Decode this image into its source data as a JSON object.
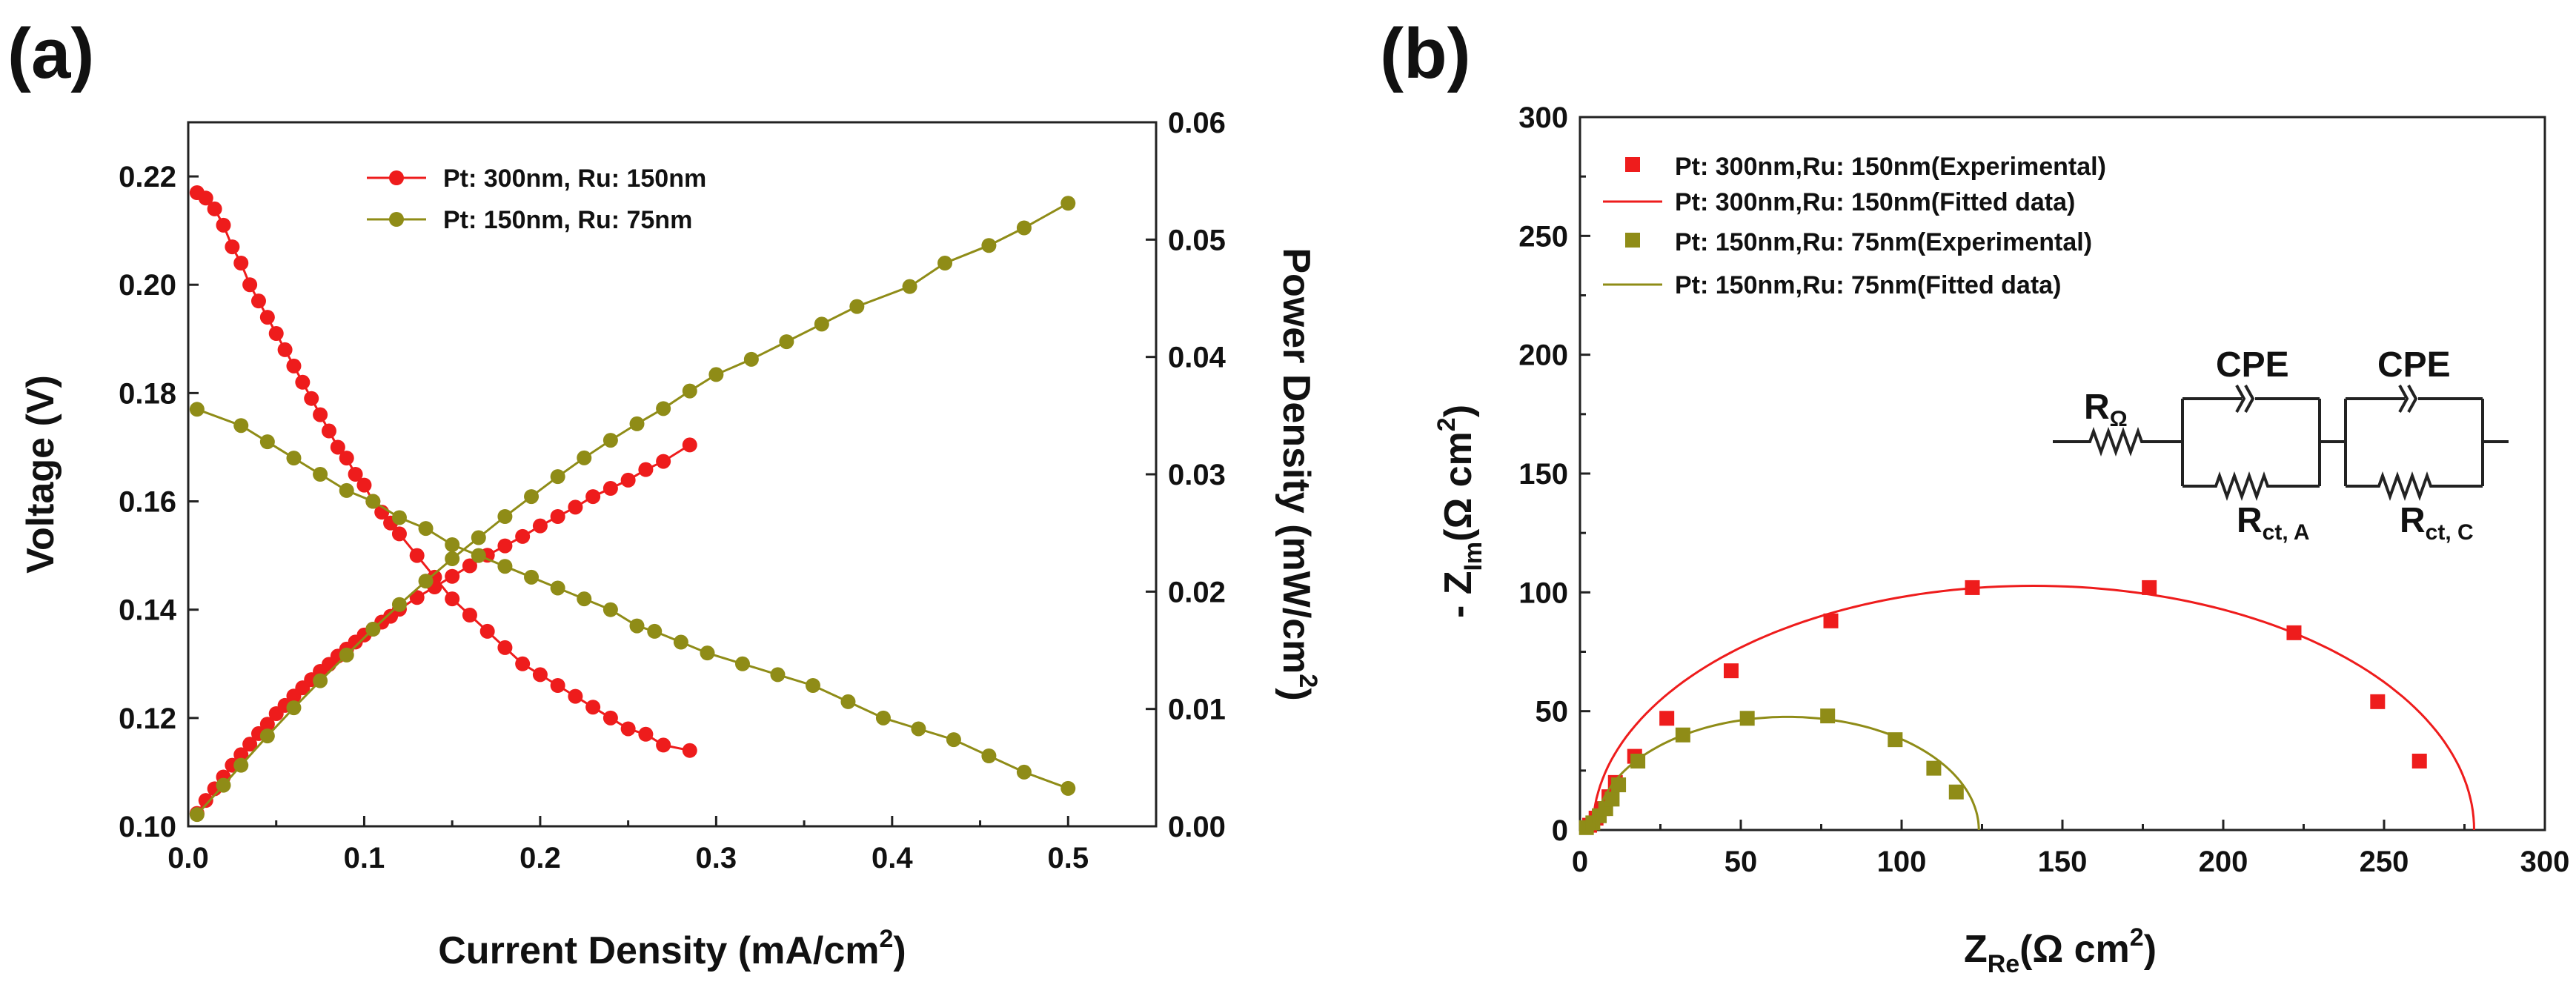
{
  "chart_data": [
    {
      "panel_label": "(a)",
      "type": "line",
      "xlabel_main": "Current Density (mA/cm",
      "xlabel_sup": "2",
      "xlabel_end": ")",
      "ylabel": "Voltage (V)",
      "y2label_main": "Power Density (mW/cm",
      "y2label_sup": "2",
      "y2label_end": ")",
      "xlim": [
        0.0,
        0.55
      ],
      "ylim": [
        0.1,
        0.23
      ],
      "y2lim": [
        0.0,
        0.06
      ],
      "x_ticks": [
        "0.0",
        "0.1",
        "0.2",
        "0.3",
        "0.4",
        "0.5"
      ],
      "y_ticks": [
        "0.10",
        "0.12",
        "0.14",
        "0.16",
        "0.18",
        "0.20",
        "0.22"
      ],
      "y2_ticks": [
        "0.00",
        "0.01",
        "0.02",
        "0.03",
        "0.04",
        "0.05",
        "0.06"
      ],
      "legend": [
        "Pt: 300nm, Ru: 150nm",
        "Pt: 150nm, Ru: 75nm"
      ],
      "series": [
        {
          "name": "Pt: 300nm, Ru: 150nm",
          "color": "#ee1c1c",
          "marker": "circle",
          "axis": "left",
          "kind": "voltage",
          "x": [
            0.005,
            0.01,
            0.015,
            0.02,
            0.025,
            0.03,
            0.035,
            0.04,
            0.045,
            0.05,
            0.055,
            0.06,
            0.065,
            0.07,
            0.075,
            0.08,
            0.085,
            0.09,
            0.095,
            0.1,
            0.105,
            0.11,
            0.115,
            0.12,
            0.13,
            0.14,
            0.15,
            0.16,
            0.17,
            0.18,
            0.19,
            0.2,
            0.21,
            0.22,
            0.23,
            0.24,
            0.25,
            0.26,
            0.27,
            0.285
          ],
          "values": [
            0.217,
            0.216,
            0.214,
            0.211,
            0.207,
            0.204,
            0.2,
            0.197,
            0.194,
            0.191,
            0.188,
            0.185,
            0.182,
            0.179,
            0.176,
            0.173,
            0.17,
            0.168,
            0.165,
            0.163,
            0.16,
            0.158,
            0.156,
            0.154,
            0.15,
            0.146,
            0.142,
            0.139,
            0.136,
            0.133,
            0.13,
            0.128,
            0.126,
            0.124,
            0.122,
            0.12,
            0.118,
            0.117,
            0.115,
            0.114
          ]
        },
        {
          "name": "Pt: 300nm, Ru: 150nm",
          "color": "#ee1c1c",
          "marker": "circle",
          "axis": "right",
          "kind": "power",
          "x": [
            0.005,
            0.01,
            0.015,
            0.02,
            0.025,
            0.03,
            0.035,
            0.04,
            0.045,
            0.05,
            0.055,
            0.06,
            0.065,
            0.07,
            0.075,
            0.08,
            0.085,
            0.09,
            0.095,
            0.1,
            0.105,
            0.11,
            0.115,
            0.12,
            0.13,
            0.14,
            0.15,
            0.16,
            0.17,
            0.18,
            0.19,
            0.2,
            0.21,
            0.22,
            0.23,
            0.24,
            0.25,
            0.26,
            0.27,
            0.285
          ],
          "values": [
            0.0011,
            0.0022,
            0.0032,
            0.0042,
            0.0052,
            0.0061,
            0.007,
            0.0079,
            0.0087,
            0.0096,
            0.0103,
            0.0111,
            0.0118,
            0.0125,
            0.0132,
            0.0138,
            0.0145,
            0.0151,
            0.0157,
            0.0163,
            0.0168,
            0.0174,
            0.0179,
            0.0185,
            0.0195,
            0.0204,
            0.0213,
            0.0222,
            0.0231,
            0.0239,
            0.0247,
            0.0256,
            0.0264,
            0.0272,
            0.0281,
            0.0288,
            0.0295,
            0.0304,
            0.0311,
            0.0325
          ]
        },
        {
          "name": "Pt: 150nm, Ru: 75nm",
          "color": "#8f8c17",
          "marker": "circle",
          "axis": "left",
          "kind": "voltage",
          "x": [
            0.005,
            0.03,
            0.045,
            0.06,
            0.075,
            0.09,
            0.105,
            0.12,
            0.135,
            0.15,
            0.165,
            0.18,
            0.195,
            0.21,
            0.225,
            0.24,
            0.255,
            0.265,
            0.28,
            0.295,
            0.315,
            0.335,
            0.355,
            0.375,
            0.395,
            0.415,
            0.435,
            0.455,
            0.475,
            0.5
          ],
          "values": [
            0.177,
            0.174,
            0.171,
            0.168,
            0.165,
            0.162,
            0.16,
            0.157,
            0.155,
            0.152,
            0.15,
            0.148,
            0.146,
            0.144,
            0.142,
            0.14,
            0.137,
            0.136,
            0.134,
            0.132,
            0.13,
            0.128,
            0.126,
            0.123,
            0.12,
            0.118,
            0.116,
            0.113,
            0.11,
            0.107
          ]
        },
        {
          "name": "Pt: 150nm, Ru: 75nm",
          "color": "#8f8c17",
          "marker": "circle",
          "axis": "right",
          "kind": "power",
          "x": [
            0.005,
            0.02,
            0.03,
            0.045,
            0.06,
            0.075,
            0.09,
            0.105,
            0.12,
            0.135,
            0.15,
            0.165,
            0.18,
            0.195,
            0.21,
            0.225,
            0.24,
            0.255,
            0.27,
            0.285,
            0.3,
            0.32,
            0.34,
            0.36,
            0.38,
            0.41,
            0.43,
            0.455,
            0.475,
            0.5
          ],
          "values": [
            0.001,
            0.0035,
            0.0052,
            0.0077,
            0.0101,
            0.0124,
            0.0146,
            0.0168,
            0.0189,
            0.0209,
            0.0228,
            0.0246,
            0.0264,
            0.0281,
            0.0298,
            0.0314,
            0.0329,
            0.0343,
            0.0356,
            0.0371,
            0.0385,
            0.0398,
            0.0413,
            0.0428,
            0.0443,
            0.046,
            0.048,
            0.0495,
            0.051,
            0.0531
          ]
        }
      ]
    },
    {
      "panel_label": "(b)",
      "type": "scatter",
      "xlabel_main": "Z",
      "xlabel_sub": "Re",
      "xlabel_unit": "(Ω cm",
      "xlabel_sup": "2",
      "xlabel_end": ")",
      "ylabel_prefix": "- Z",
      "ylabel_sub": "Im",
      "ylabel_unit": "(Ω cm",
      "ylabel_sup": "2",
      "ylabel_end": ")",
      "xlim": [
        0,
        300
      ],
      "ylim": [
        0,
        300
      ],
      "x_ticks": [
        "0",
        "50",
        "100",
        "150",
        "200",
        "250",
        "300"
      ],
      "y_ticks": [
        "0",
        "50",
        "100",
        "150",
        "200",
        "250",
        "300"
      ],
      "legend": [
        "Pt: 300nm,Ru: 150nm(Experimental)",
        "Pt: 300nm,Ru: 150nm(Fitted data)",
        "Pt: 150nm,Ru: 75nm(Experimental)",
        "Pt: 150nm,Ru: 75nm(Fitted data)"
      ],
      "series": [
        {
          "name": "Pt: 300nm,Ru: 150nm(Experimental)",
          "color": "#ee1c1c",
          "marker": "square",
          "x": [
            3,
            5,
            7,
            9,
            11,
            17,
            27,
            47,
            78,
            122,
            177,
            222,
            248,
            261
          ],
          "values": [
            2,
            5,
            9,
            14,
            20,
            31,
            47,
            67,
            88,
            102,
            102,
            83,
            54,
            29
          ]
        },
        {
          "name": "Pt: 300nm,Ru: 150nm(Fitted data)",
          "color": "#ee1c1c",
          "marker": "line",
          "arc": {
            "center": 141,
            "radius": 137,
            "depression": 0.75
          }
        },
        {
          "name": "Pt: 150nm,Ru: 75nm(Experimental)",
          "color": "#8f8c17",
          "marker": "square",
          "x": [
            2,
            4,
            6,
            8,
            10,
            12,
            18,
            32,
            52,
            77,
            98,
            110,
            117
          ],
          "values": [
            1,
            3,
            6,
            9,
            13,
            19,
            29,
            40,
            47,
            48,
            38,
            26,
            16
          ]
        },
        {
          "name": "Pt: 150nm,Ru: 75nm(Fitted data)",
          "color": "#8f8c17",
          "marker": "line",
          "arc": {
            "center": 64.5,
            "radius": 59.5,
            "depression": 0.8
          }
        }
      ],
      "circuit": {
        "r_omega": "R",
        "r_omega_sub": "Ω",
        "cpe1": "CPE",
        "cpe2": "CPE",
        "rct_a": "R",
        "rct_a_sub": "ct, A",
        "rct_c": "R",
        "rct_c_sub": "ct, C"
      }
    }
  ]
}
